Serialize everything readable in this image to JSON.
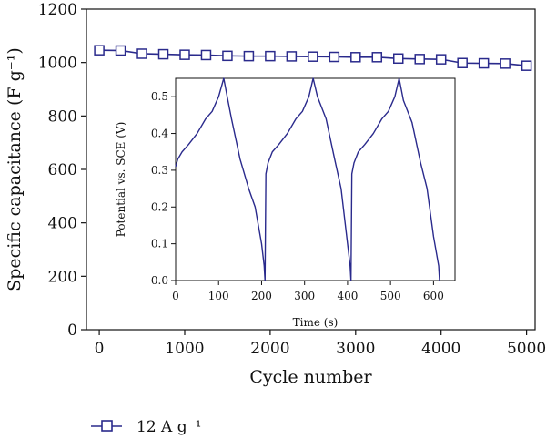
{
  "chart_data": [
    {
      "type": "line",
      "role": "main",
      "xlabel": "Cycle number",
      "ylabel": "Specific capacitance (F g⁻¹)",
      "xlim": [
        -150,
        5100
      ],
      "ylim": [
        0,
        1200
      ],
      "xticks": [
        0,
        1000,
        2000,
        3000,
        4000,
        5000
      ],
      "yticks": [
        0,
        200,
        400,
        600,
        800,
        1000,
        1200
      ],
      "color": "#2a2a8c",
      "series": [
        {
          "name": "12 A g⁻¹",
          "marker": "square-open",
          "x": [
            0,
            250,
            500,
            750,
            1000,
            1250,
            1500,
            1750,
            2000,
            2250,
            2500,
            2750,
            3000,
            3250,
            3500,
            3750,
            4000,
            4250,
            4500,
            4750,
            5000
          ],
          "y": [
            1046,
            1045,
            1033,
            1031,
            1029,
            1028,
            1025,
            1024,
            1024,
            1023,
            1022,
            1021,
            1020,
            1020,
            1015,
            1013,
            1012,
            998,
            997,
            996,
            988
          ]
        }
      ],
      "legend_position": "bottom-left"
    },
    {
      "type": "line",
      "role": "inset",
      "xlabel": "Time (s)",
      "ylabel": "Potential vs. SCE (V)",
      "xlim": [
        0,
        650
      ],
      "ylim": [
        0,
        0.55
      ],
      "xticks": [
        0,
        100,
        200,
        300,
        400,
        500,
        600
      ],
      "yticks": [
        0.0,
        0.1,
        0.2,
        0.3,
        0.4,
        0.5
      ],
      "color": "#2a2a8c",
      "series": [
        {
          "x": [
            0,
            5,
            15,
            30,
            50,
            70,
            85,
            100,
            112,
            120,
            130,
            150,
            170,
            185,
            200,
            206,
            208,
            210,
            215,
            225,
            240,
            260,
            280,
            295,
            310,
            320,
            330,
            350,
            370,
            385,
            400,
            406,
            408,
            410,
            415,
            425,
            440,
            460,
            480,
            495,
            510,
            520,
            530,
            550,
            570,
            585,
            600,
            612,
            614
          ],
          "y": [
            0.31,
            0.33,
            0.35,
            0.37,
            0.4,
            0.44,
            0.46,
            0.5,
            0.55,
            0.5,
            0.44,
            0.33,
            0.25,
            0.2,
            0.1,
            0.04,
            0.0,
            0.29,
            0.32,
            0.35,
            0.37,
            0.4,
            0.44,
            0.46,
            0.5,
            0.55,
            0.5,
            0.44,
            0.33,
            0.25,
            0.1,
            0.04,
            0.0,
            0.29,
            0.32,
            0.35,
            0.37,
            0.4,
            0.44,
            0.46,
            0.5,
            0.55,
            0.49,
            0.43,
            0.32,
            0.25,
            0.12,
            0.04,
            0.0
          ]
        }
      ]
    }
  ]
}
